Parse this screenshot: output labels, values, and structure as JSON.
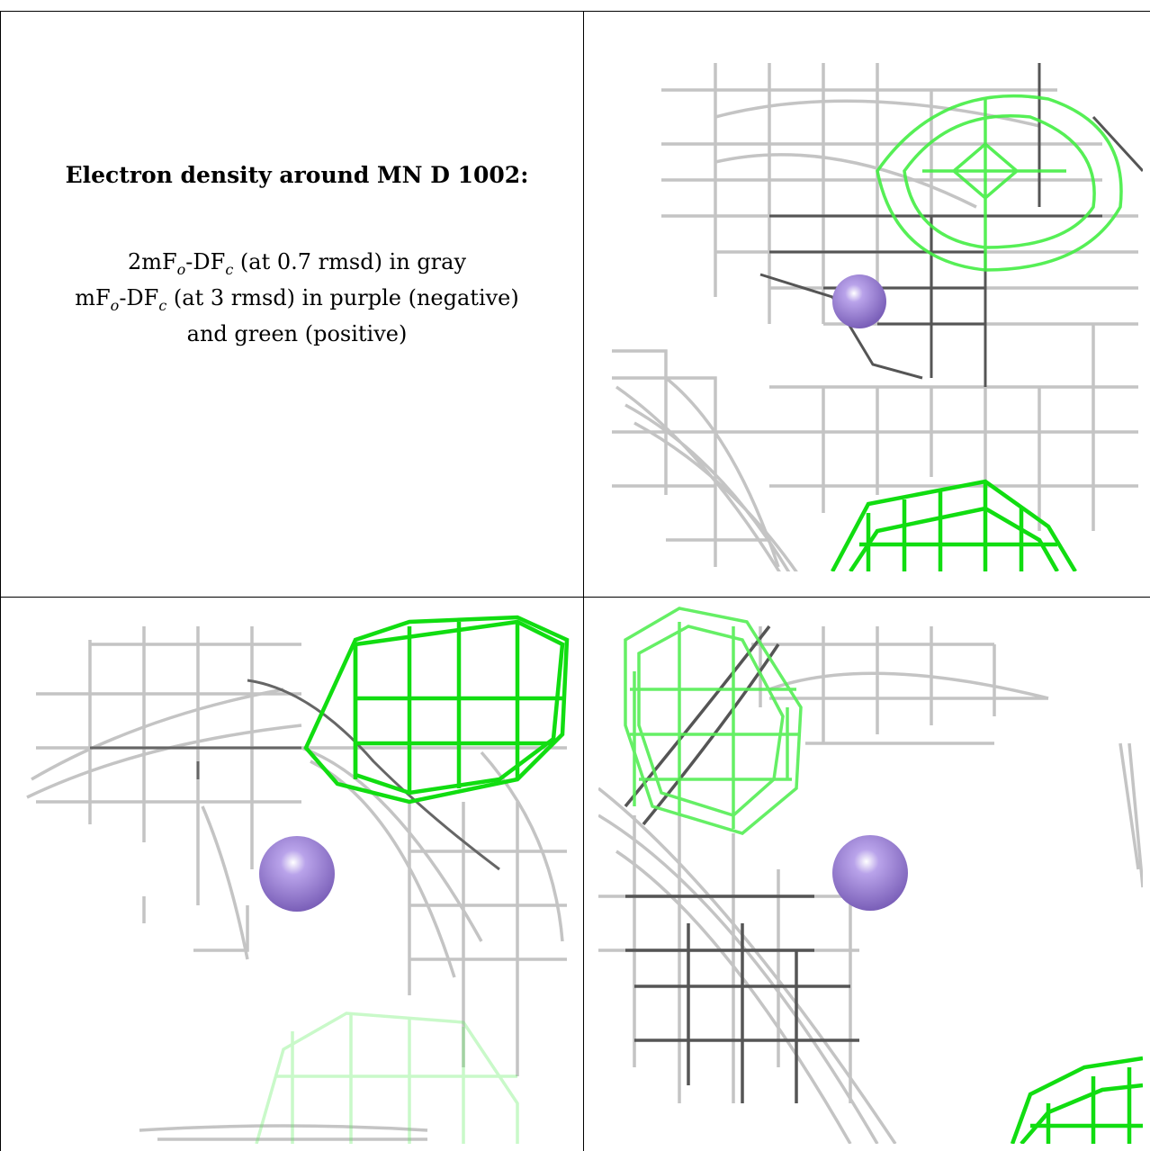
{
  "caption": {
    "title": "Electron density around MN D 1002:",
    "line1_pre": "2mF",
    "line1_sub1": "o",
    "line1_mid": "-DF",
    "line1_sub2": "c",
    "line1_post": " (at 0.7 rmsd) in gray",
    "line2_pre": "mF",
    "line2_sub1": "o",
    "line2_mid": "-DF",
    "line2_sub2": "c",
    "line2_post": " (at 3 rmsd) in purple (negative)",
    "line3": "and green (positive)"
  },
  "colors": {
    "mesh_gray": "#b8b8b8",
    "mesh_dark": "#555555",
    "mesh_green": "#22dd22",
    "atom_purple": "#9b7fd4"
  },
  "panels": [
    {
      "name": "view-1",
      "atom": "MN D 1002"
    },
    {
      "name": "view-2",
      "atom": "MN D 1002"
    },
    {
      "name": "view-3",
      "atom": "MN D 1002"
    }
  ]
}
